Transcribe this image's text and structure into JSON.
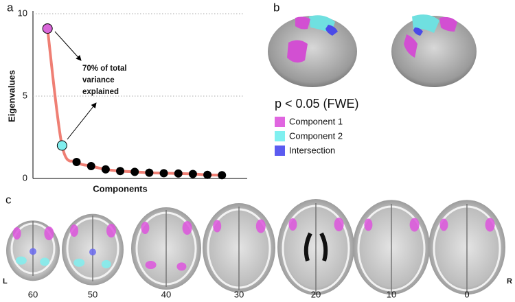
{
  "chart_data": {
    "type": "line",
    "x_label": "Components",
    "y_label": "Eigenvalues",
    "x": [
      1,
      2,
      3,
      4,
      5,
      6,
      7,
      8,
      9,
      10,
      11,
      12,
      13
    ],
    "y": [
      9.1,
      2.0,
      1.0,
      0.75,
      0.55,
      0.45,
      0.4,
      0.35,
      0.32,
      0.3,
      0.27,
      0.22,
      0.2
    ],
    "line_color": "#ef7f74",
    "marker_colors": [
      "#d966d9",
      "#80eeee",
      "#000000",
      "#000000",
      "#000000",
      "#000000",
      "#000000",
      "#000000",
      "#000000",
      "#000000",
      "#000000",
      "#000000",
      "#000000"
    ],
    "xlim": [
      0,
      14.5
    ],
    "ylim": [
      0,
      10
    ],
    "yticks": [
      0,
      5,
      10
    ],
    "grid": true,
    "annotation": [
      "70% of total",
      "variance",
      "explained"
    ]
  },
  "panel_labels": [
    "a",
    "b",
    "c"
  ],
  "legend": {
    "title": "p < 0.05 (FWE)",
    "items": [
      {
        "label": "Component 1",
        "color": "#e066e0"
      },
      {
        "label": "Component 2",
        "color": "#80f0f0"
      },
      {
        "label": "Intersection",
        "color": "#5b5bf0"
      }
    ]
  },
  "slices": {
    "left": "L",
    "right": "R",
    "labels": [
      "60",
      "50",
      "40",
      "30",
      "20",
      "10",
      "0"
    ]
  }
}
